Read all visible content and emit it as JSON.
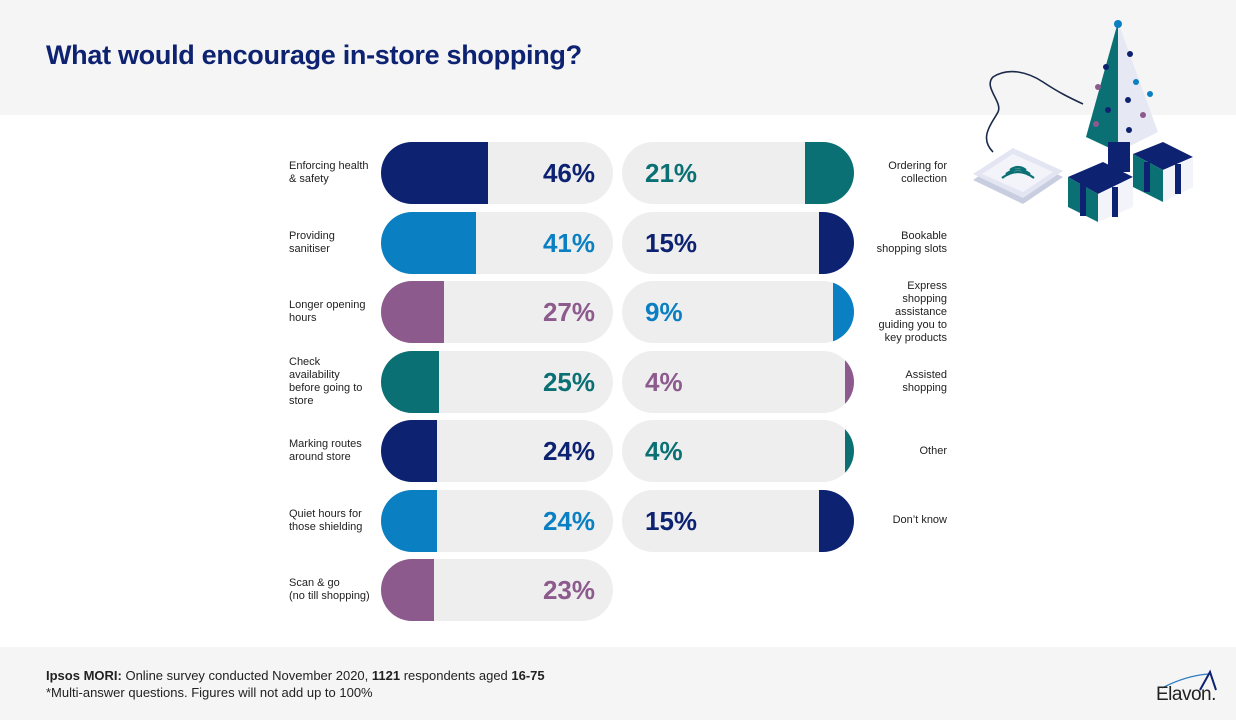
{
  "header": {
    "title": "What would encourage in-store shopping?"
  },
  "colors": {
    "navy": "#0d2270",
    "blue": "#0a7fc2",
    "purple": "#8c5a8c",
    "teal": "#0b7073",
    "track": "#eeeeef"
  },
  "chart_data": {
    "type": "bar",
    "title": "What would encourage in-store shopping?",
    "orientation": "horizontal",
    "unit": "%",
    "xlim": [
      0,
      100
    ],
    "grid": false,
    "left_column": [
      {
        "label": "Enforcing health & safety",
        "value": 46,
        "display": "46%",
        "color": "navy"
      },
      {
        "label": "Providing sanitiser",
        "value": 41,
        "display": "41%",
        "color": "blue"
      },
      {
        "label": "Longer opening hours",
        "value": 27,
        "display": "27%",
        "color": "purple"
      },
      {
        "label": "Check availability before going to store",
        "value": 25,
        "display": "25%",
        "color": "teal"
      },
      {
        "label": "Marking routes around store",
        "value": 24,
        "display": "24%",
        "color": "navy"
      },
      {
        "label": "Quiet hours for those shielding",
        "value": 24,
        "display": "24%",
        "color": "blue"
      },
      {
        "label": "Scan & go (no till shopping)",
        "value": 23,
        "display": "23%",
        "color": "purple"
      }
    ],
    "right_column": [
      {
        "label": "Ordering for collection",
        "value": 21,
        "display": "21%",
        "color": "teal"
      },
      {
        "label": "Bookable shopping slots",
        "value": 15,
        "display": "15%",
        "color": "navy"
      },
      {
        "label": "Express shopping assistance guiding you to key products",
        "value": 9,
        "display": "9%",
        "color": "blue"
      },
      {
        "label": "Assisted shopping",
        "value": 4,
        "display": "4%",
        "color": "purple"
      },
      {
        "label": "Other",
        "value": 4,
        "display": "4%",
        "color": "teal"
      },
      {
        "label": "Don’t know",
        "value": 15,
        "display": "15%",
        "color": "navy"
      }
    ]
  },
  "labels_left": [
    [
      "Enforcing health",
      "& safety"
    ],
    [
      "Providing",
      "sanitiser"
    ],
    [
      "Longer opening",
      "hours"
    ],
    [
      "Check",
      "availability",
      "before going to",
      "store"
    ],
    [
      "Marking routes",
      "around store"
    ],
    [
      "Quiet hours for",
      "those shielding"
    ],
    [
      "Scan & go",
      "(no till shopping)"
    ]
  ],
  "labels_right": [
    [
      "Ordering for",
      "collection"
    ],
    [
      "Bookable",
      "shopping slots"
    ],
    [
      "Express",
      "shopping",
      "assistance",
      "guiding you to",
      "key products"
    ],
    [
      "Assisted",
      "shopping"
    ],
    [
      "Other"
    ],
    [
      "Don’t know"
    ]
  ],
  "footer": {
    "source_bold": "Ipsos MORI:",
    "source_text_1": " Online survey conducted November 2020, ",
    "respondents": "1121",
    "source_text_2": " respondents aged ",
    "age_range": "16-75",
    "note": "*Multi-answer questions. Figures will not add up to 100%"
  },
  "brand": {
    "logo_text": "Elavon."
  }
}
